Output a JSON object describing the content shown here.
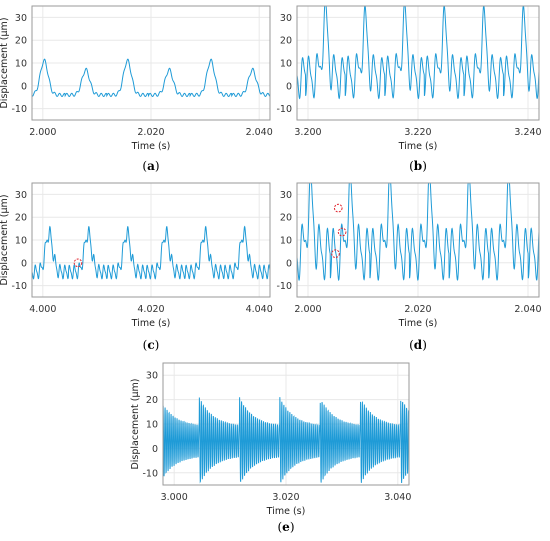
{
  "figure": {
    "line_color": "#1f9bd7",
    "marker_color": "#e0202a",
    "grid": true
  },
  "chart_data": [
    {
      "id": "a",
      "panel_label": "a",
      "type": "line",
      "xlabel": "Time (s)",
      "ylabel": "Displacement (μm)",
      "xlim": [
        1.998,
        2.042
      ],
      "ylim": [
        -15,
        35
      ],
      "xticks": [
        "2.000",
        "2.020",
        "2.040"
      ],
      "xtick_values": [
        2.0,
        2.02,
        2.04
      ],
      "yticks": [
        "30",
        "20",
        "10",
        "0",
        "-10"
      ],
      "ytick_values": [
        30,
        20,
        10,
        0,
        -10
      ],
      "series": [
        {
          "period": 0.0077,
          "phase": 0.00595,
          "baseline": -4,
          "peak": 11,
          "peak_width": 0.00072,
          "ripples": [
            [
              0.8,
              1100
            ]
          ],
          "peak_values": [
            11,
            7,
            11,
            7,
            11,
            7,
            7
          ]
        }
      ],
      "markers": []
    },
    {
      "id": "b",
      "panel_label": "b",
      "type": "line",
      "xlabel": "Time (s)",
      "ylabel": "",
      "xlim": [
        3.198,
        3.242
      ],
      "ylim": [
        -15,
        35
      ],
      "xticks": [
        "3.200",
        "3.220",
        "3.240"
      ],
      "xtick_values": [
        3.2,
        3.22,
        3.24
      ],
      "yticks": [
        "30",
        "20",
        "10",
        "0",
        "-10"
      ],
      "ytick_values": [
        30,
        20,
        10,
        0,
        -10
      ],
      "series": [
        {
          "period": 0.0072,
          "phase": 0.00635,
          "baseline": 4,
          "peak": 25,
          "peak_width": 0.00055,
          "ripples": [
            [
              9,
              650
            ],
            [
              3,
              1310
            ]
          ],
          "peak_values": [
            28,
            25,
            27,
            25,
            25,
            25
          ]
        }
      ],
      "markers": []
    },
    {
      "id": "c",
      "panel_label": "c",
      "type": "line",
      "xlabel": "Time (s)",
      "ylabel": "Displacement (μm)",
      "xlim": [
        3.998,
        4.042
      ],
      "ylim": [
        -15,
        35
      ],
      "xticks": [
        "4.000",
        "4.020",
        "4.040"
      ],
      "xtick_values": [
        4.0,
        4.02,
        4.04
      ],
      "yticks": [
        "30",
        "20",
        "10",
        "0",
        "-10"
      ],
      "ytick_values": [
        30,
        20,
        10,
        0,
        -10
      ],
      "series": [
        {
          "period": 0.0072,
          "phase": 0.00515,
          "baseline": -4,
          "peak": 13,
          "peak_width": 0.00065,
          "ripples": [
            [
              3,
              1100
            ],
            [
              1,
              2200
            ]
          ],
          "peak_values": [
            13,
            13,
            13,
            13,
            13,
            13,
            13
          ]
        }
      ],
      "markers": [
        [
          4.0065,
          0
        ]
      ]
    },
    {
      "id": "d",
      "panel_label": "d",
      "type": "line",
      "xlabel": "Time (s)",
      "ylabel": "",
      "xlim": [
        1.998,
        2.042
      ],
      "ylim": [
        -15,
        35
      ],
      "xticks": [
        "2.000",
        "2.020",
        "2.040"
      ],
      "xtick_values": [
        2.0,
        2.02,
        2.04
      ],
      "yticks": [
        "30",
        "20",
        "10",
        "0",
        "-10"
      ],
      "ytick_values": [
        30,
        20,
        10,
        0,
        -10
      ],
      "series": [
        {
          "period": 0.0072,
          "phase": 0.00605,
          "baseline": 4,
          "peak": 26,
          "peak_width": 0.0006,
          "ripples": [
            [
              11,
              650
            ],
            [
              4,
              1300
            ]
          ],
          "peak_values": [
            28,
            28,
            28,
            28,
            28,
            28
          ]
        }
      ],
      "markers": [
        [
          2.0055,
          24
        ],
        [
          2.0062,
          13.5
        ],
        [
          2.005,
          4
        ]
      ]
    },
    {
      "id": "e",
      "panel_label": "e",
      "type": "line",
      "xlabel": "Time (s)",
      "ylabel": "Displacement (μm)",
      "xlim": [
        2.998,
        3.042
      ],
      "ylim": [
        -15,
        35
      ],
      "xticks": [
        "3.000",
        "3.020",
        "3.040"
      ],
      "xtick_values": [
        3.0,
        3.02,
        3.04
      ],
      "yticks": [
        "30",
        "20",
        "10",
        "0",
        "-10"
      ],
      "ytick_values": [
        30,
        20,
        10,
        0,
        -10
      ],
      "series": [
        {
          "period": 0.0072,
          "phase": 0.0021,
          "baseline": 3,
          "peak": 0,
          "peak_width": 0.0005,
          "ripples": [
            [
              0,
              0
            ]
          ],
          "beat_freq": 2800,
          "beat_amp_high": 18,
          "beat_amp_low": 6,
          "peak_values": [
            19,
            19,
            19,
            19,
            19,
            19,
            19
          ]
        }
      ],
      "markers": []
    }
  ]
}
